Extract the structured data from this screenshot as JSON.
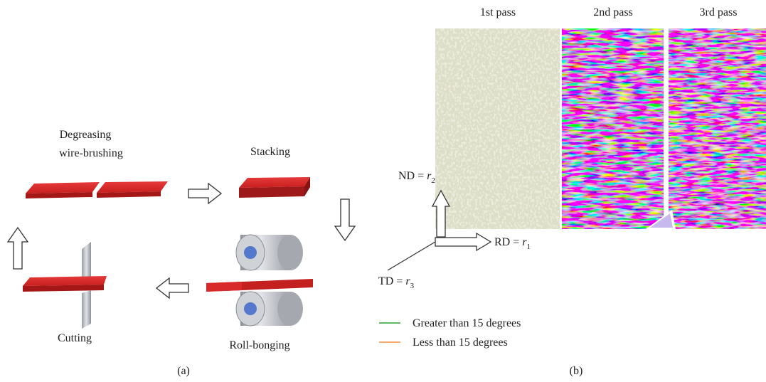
{
  "panel_a": {
    "label": "(a)",
    "steps": [
      {
        "lines": [
          "Degreasing",
          "wire-brushing"
        ]
      },
      {
        "lines": [
          "Stacking"
        ]
      },
      {
        "lines": [
          "Roll-bonging"
        ]
      },
      {
        "lines": [
          "Cutting"
        ]
      }
    ]
  },
  "panel_b": {
    "label": "(b)",
    "passes": [
      "1st pass",
      "2nd pass",
      "3rd pass"
    ],
    "axes": [
      {
        "name": "ND",
        "relation": "=",
        "symbol": "r",
        "index": "2"
      },
      {
        "name": "RD",
        "relation": "=",
        "symbol": "r",
        "index": "1"
      },
      {
        "name": "TD",
        "relation": "=",
        "symbol": "r",
        "index": "3"
      }
    ],
    "legend": [
      {
        "name": "Greater than 15 degrees",
        "color": "#2ca02c"
      },
      {
        "name": "Less than 15 degrees",
        "color": "#f28c3a"
      }
    ]
  }
}
